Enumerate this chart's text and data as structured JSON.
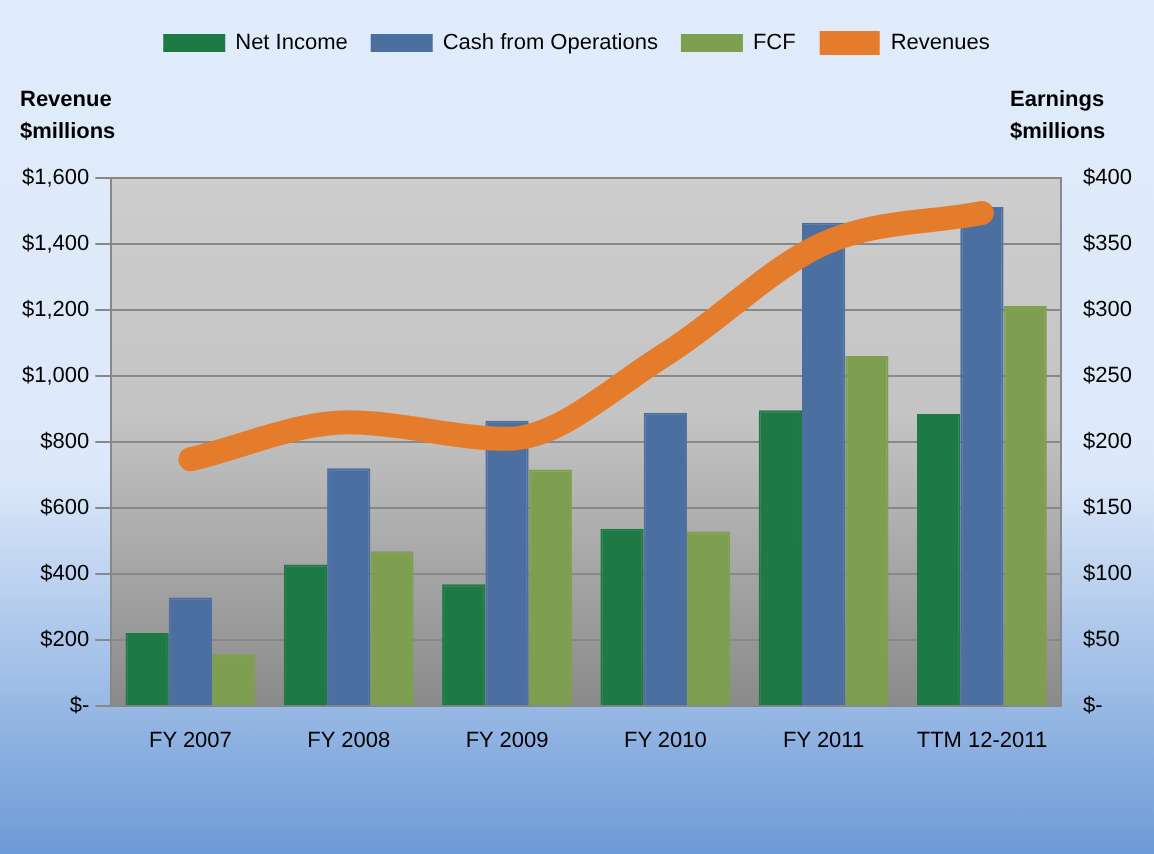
{
  "chart_data": {
    "type": "bar",
    "categories": [
      "FY 2007",
      "FY 2008",
      "FY 2009",
      "FY 2010",
      "FY 2011",
      "TTM 12-2011"
    ],
    "ylabel": "Revenue $millions",
    "y2label": "Earnings $millions",
    "ylim": [
      0,
      1600
    ],
    "yticks": [
      {
        "value": 0,
        "label": "$-"
      },
      {
        "value": 200,
        "label": "$200"
      },
      {
        "value": 400,
        "label": "$400"
      },
      {
        "value": 600,
        "label": "$600"
      },
      {
        "value": 800,
        "label": "$800"
      },
      {
        "value": 1000,
        "label": "$1,000"
      },
      {
        "value": 1200,
        "label": "$1,200"
      },
      {
        "value": 1400,
        "label": "$1,400"
      },
      {
        "value": 1600,
        "label": "$1,600"
      }
    ],
    "y2lim": [
      0,
      400
    ],
    "y2ticks": [
      {
        "value": 0,
        "label": "$-"
      },
      {
        "value": 50,
        "label": "$50"
      },
      {
        "value": 100,
        "label": "$100"
      },
      {
        "value": 150,
        "label": "$150"
      },
      {
        "value": 200,
        "label": "$200"
      },
      {
        "value": 250,
        "label": "$250"
      },
      {
        "value": 300,
        "label": "$300"
      },
      {
        "value": 350,
        "label": "$350"
      },
      {
        "value": 400,
        "label": "$400"
      }
    ],
    "grid": "y",
    "legend": "top",
    "marker": "none",
    "series": [
      {
        "name": "Net Income",
        "color": "#1e7a45",
        "axis": "y2",
        "values": [
          55,
          107,
          92,
          134,
          224,
          221
        ]
      },
      {
        "name": "Cash from Operations",
        "color": "#4a6fa0",
        "axis": "y2",
        "values": [
          82,
          180,
          216,
          222,
          366,
          378
        ]
      },
      {
        "name": "FCF",
        "color": "#7f9f50",
        "axis": "y2",
        "values": [
          39,
          117,
          179,
          132,
          265,
          303
        ]
      },
      {
        "name": "Revenues",
        "type": "line",
        "color": "#e47c2c",
        "values": [
          747,
          859,
          809,
          1065,
          1401,
          1494
        ]
      }
    ]
  }
}
